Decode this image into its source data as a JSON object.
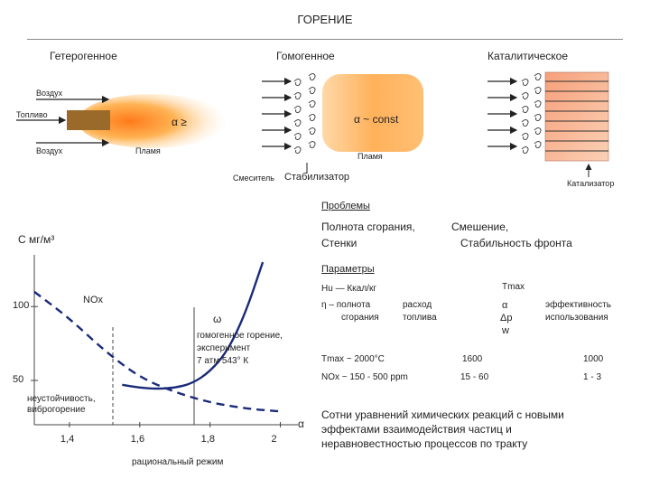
{
  "title": "ГОРЕНИЕ",
  "columns": {
    "heterogeneous": "Гетерогенное",
    "homogeneous": "Гомогенное",
    "catalytic": "Каталитическое"
  },
  "heterogeneous_diagram": {
    "air_top": "Воздух",
    "fuel": "Топливо",
    "air_bottom": "Воздух",
    "flame": "Пламя",
    "alpha_label": "α ≥"
  },
  "homogeneous_diagram": {
    "alpha_label": "α ~ const",
    "flame": "Пламя",
    "mixer": "Смеситель",
    "stabilizer": "Стабилизатор"
  },
  "catalytic_diagram": {
    "catalyst": "Катализатор"
  },
  "problems": {
    "heading": "Проблемы",
    "left": [
      "Полнота сгорания,",
      "Стенки"
    ],
    "right": [
      "Смешение,",
      "Стабильность фронта"
    ]
  },
  "parameters": {
    "heading": "Параметры",
    "hu": "Hu",
    "hu_def": "Ккал/кг",
    "eta": "η",
    "eta_def": [
      "полнота",
      "сгорания"
    ],
    "consumption": [
      "расход",
      "топлива"
    ],
    "tmax": "Tmax",
    "alpha": "α",
    "dp": "Δp",
    "w": "w",
    "efficiency": [
      "эффективность",
      "использования"
    ],
    "row_tmax": {
      "label": "Tmax ~ 2000°C",
      "col2": "1600",
      "col3": "1000"
    },
    "row_nox": {
      "label": "NOx ~ 150 - 500 ppm",
      "col2": "15 - 60",
      "col3": "1 - 3"
    }
  },
  "footnote": [
    "Сотни уравнений химических реакций с новыми",
    "эффектами взаимодействия частиц и",
    "неравновестностью процессов по тракту"
  ],
  "chart_data": {
    "type": "line",
    "ylabel": "С  мг/м³",
    "xlabel": "α",
    "xlim": [
      1.3,
      2.05
    ],
    "ylim": [
      20,
      135
    ],
    "x_ticks": [
      "1,4",
      "1,6",
      "1,8",
      "2"
    ],
    "x_tick_values": [
      1.4,
      1.6,
      1.8,
      2.0
    ],
    "y_ticks": [
      "100",
      "50"
    ],
    "y_tick_values": [
      100,
      50
    ],
    "series": [
      {
        "name": "NOx",
        "style": "dashed",
        "color": "#1a2a7a",
        "x": [
          1.3,
          1.4,
          1.5,
          1.6,
          1.7,
          1.8,
          1.9,
          2.0
        ],
        "y": [
          110,
          92,
          70,
          52,
          42,
          35,
          31,
          29
        ]
      },
      {
        "name": "ω",
        "style": "solid",
        "color": "#1a2a7a",
        "x": [
          1.55,
          1.6,
          1.65,
          1.7,
          1.75,
          1.8,
          1.85,
          1.9,
          1.95
        ],
        "y": [
          47,
          45,
          44.3,
          45,
          48,
          56,
          70,
          95,
          130
        ]
      }
    ],
    "annotations": {
      "instability": [
        "неустойчивость,",
        "виброгорение"
      ],
      "experiment": [
        "гомогенное горение,",
        "эксперимент",
        "7 атм       543° К"
      ],
      "rational": "рациональный режим"
    }
  },
  "colors": {
    "flame_core": "#ffb040",
    "flame_edge": "#ffd9a0",
    "curve": "#1a2a7a",
    "catalyst_box": "#f7b28a"
  }
}
